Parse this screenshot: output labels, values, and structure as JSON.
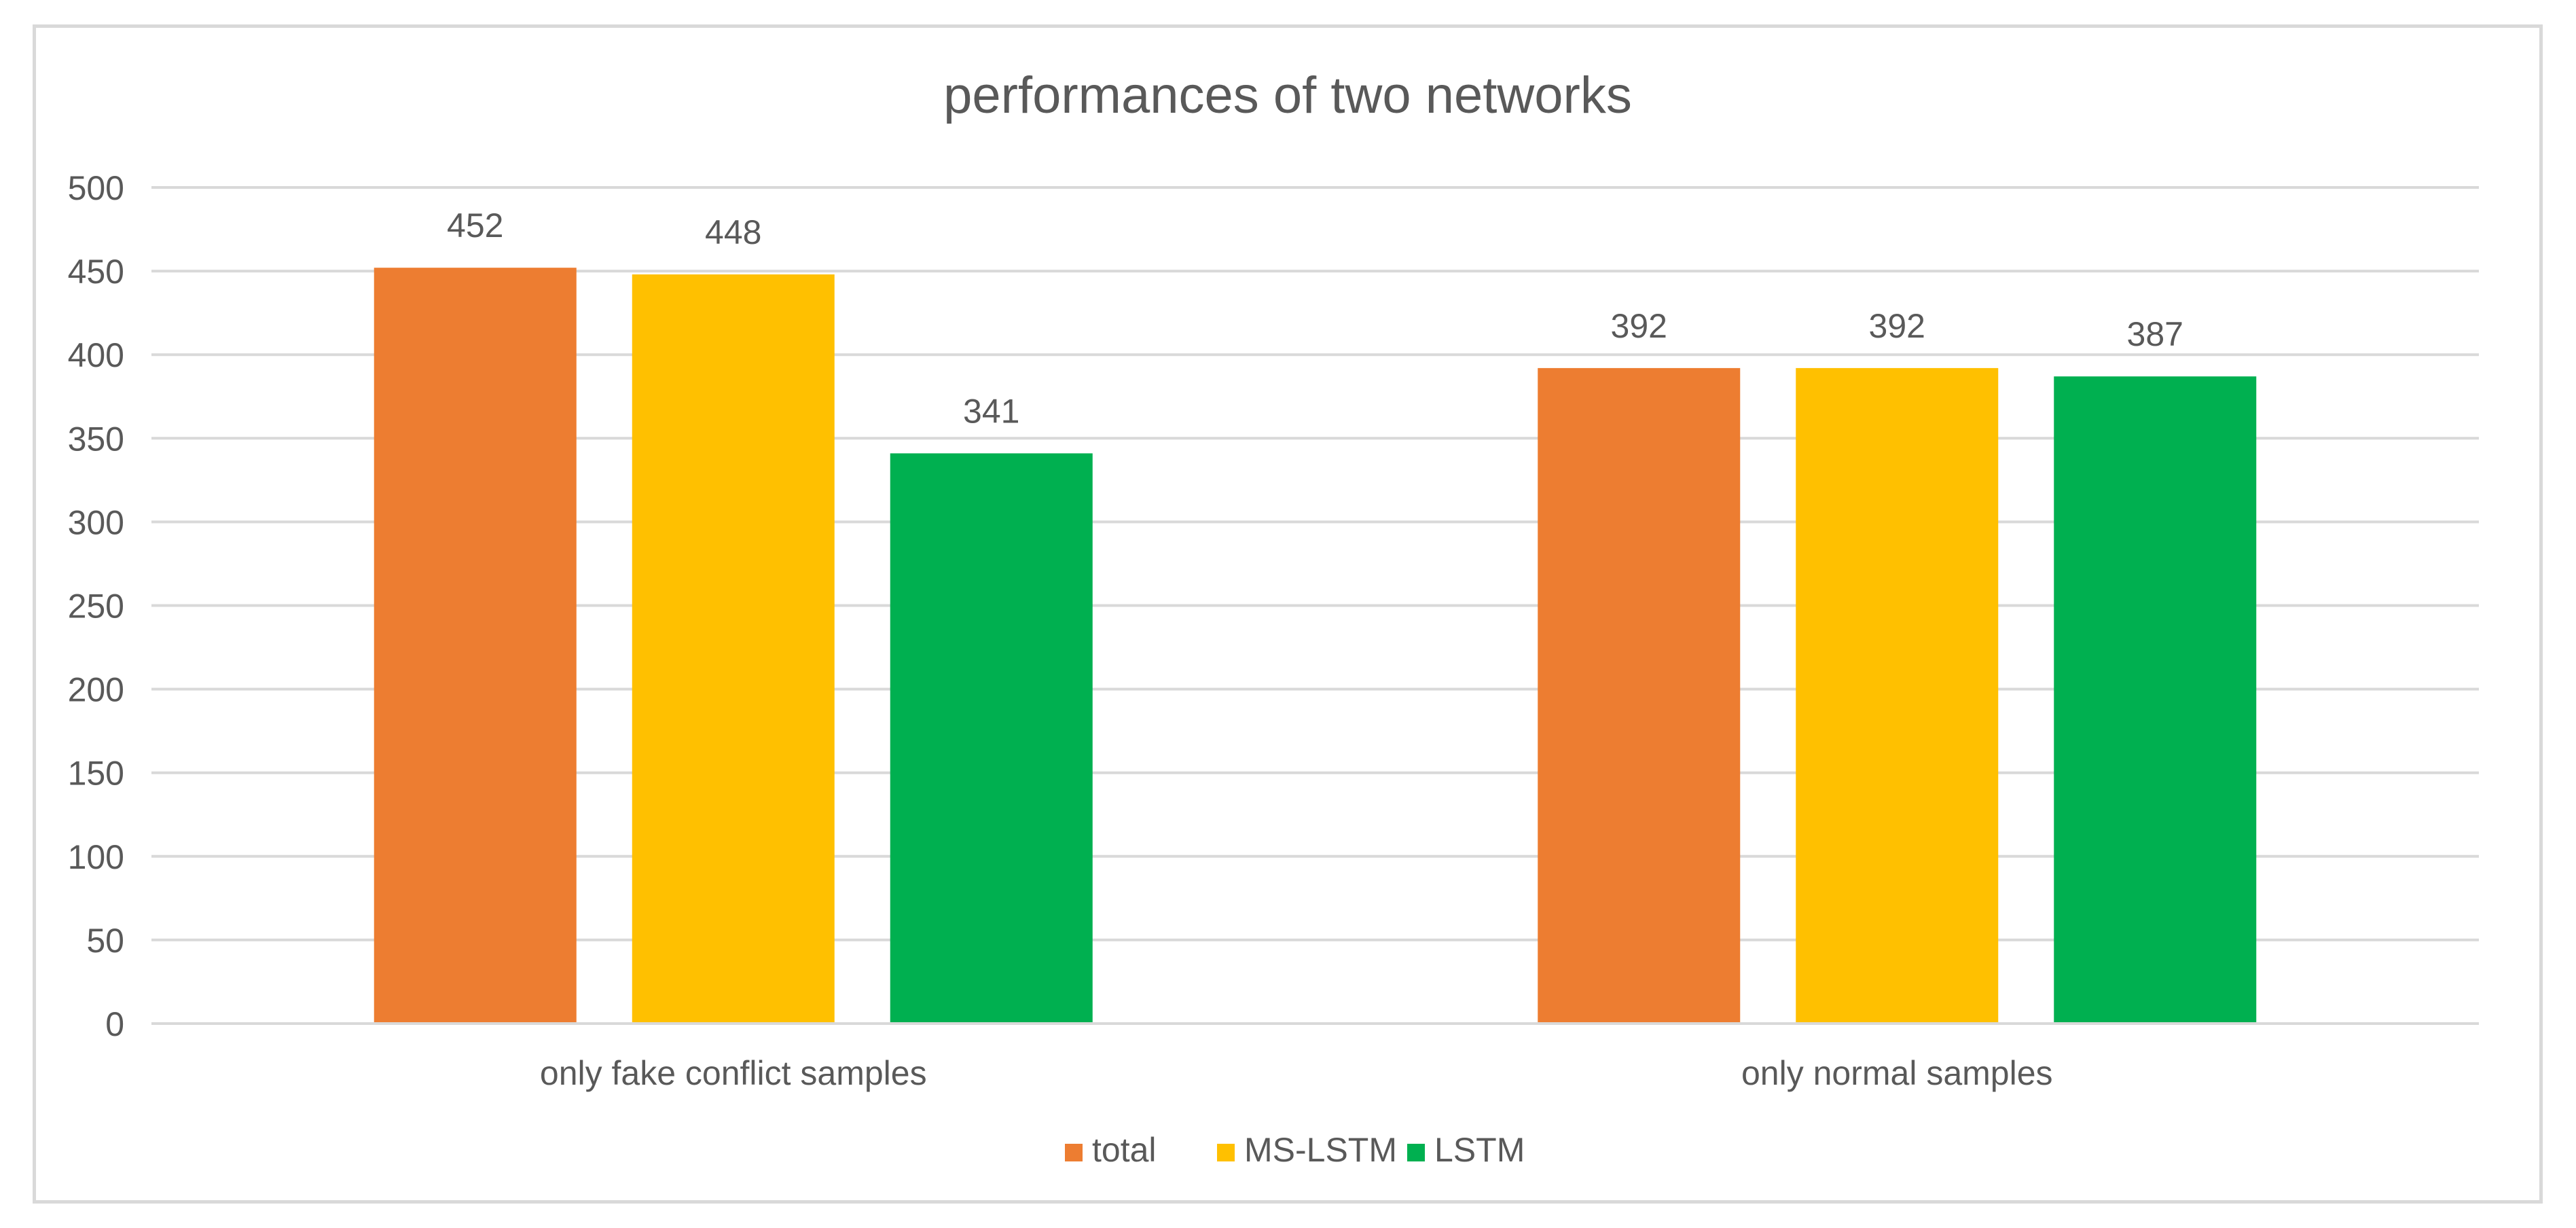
{
  "chart_data": {
    "type": "bar",
    "title": "performances of two networks",
    "xlabel": "",
    "ylabel": "",
    "categories": [
      "only fake conflict samples",
      "only normal samples"
    ],
    "series": [
      {
        "name": "total",
        "color": "#ED7D31",
        "values": [
          452,
          392
        ]
      },
      {
        "name": "MS-LSTM",
        "color": "#FFC000",
        "values": [
          448,
          392
        ]
      },
      {
        "name": "LSTM",
        "color": "#00B050",
        "values": [
          341,
          387
        ]
      }
    ],
    "ylim": [
      0,
      500
    ],
    "yticks": [
      0,
      50,
      100,
      150,
      200,
      250,
      300,
      350,
      400,
      450,
      500
    ],
    "grid": true,
    "legend": "bottom-center",
    "data_labels": true
  },
  "colors": {
    "gridline": "#d9d9d9",
    "text": "#595959",
    "border": "#d9d9d9"
  }
}
